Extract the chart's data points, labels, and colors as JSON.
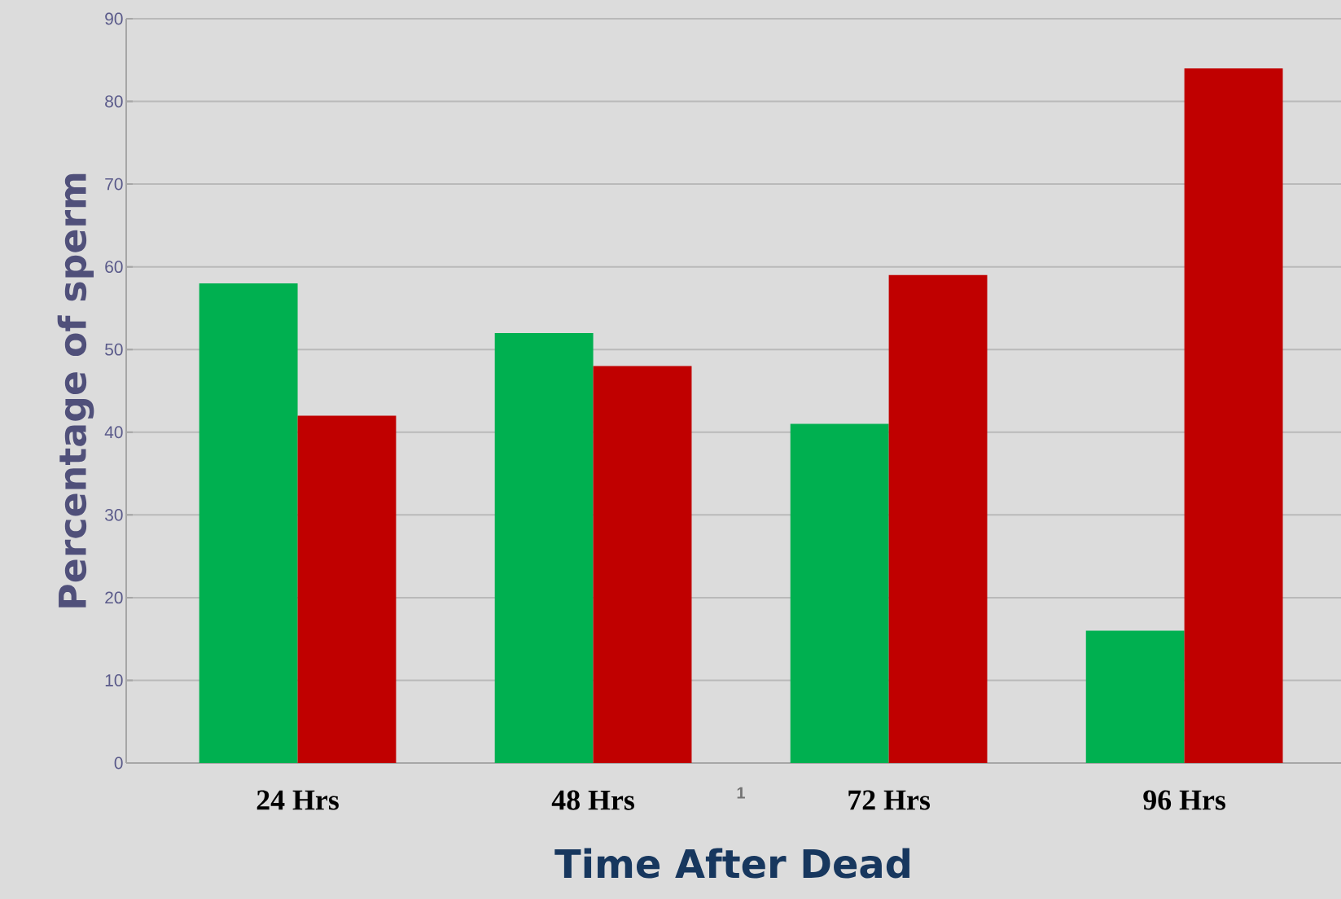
{
  "chart_data": {
    "type": "bar",
    "categories": [
      "24 Hrs",
      "48 Hrs",
      "72 Hrs",
      "96 Hrs"
    ],
    "series": [
      {
        "color": "#00b050",
        "values": [
          58,
          52,
          41,
          16
        ]
      },
      {
        "color": "#c00000",
        "values": [
          42,
          48,
          59,
          84
        ]
      }
    ],
    "ylabel": "Percentage of sperm",
    "xlabel": "Time After Dead",
    "ylim": [
      0,
      90
    ],
    "yticks": [
      0,
      10,
      20,
      30,
      40,
      50,
      60,
      70,
      80,
      90
    ],
    "grid": "y",
    "annotations": [
      "1"
    ]
  }
}
